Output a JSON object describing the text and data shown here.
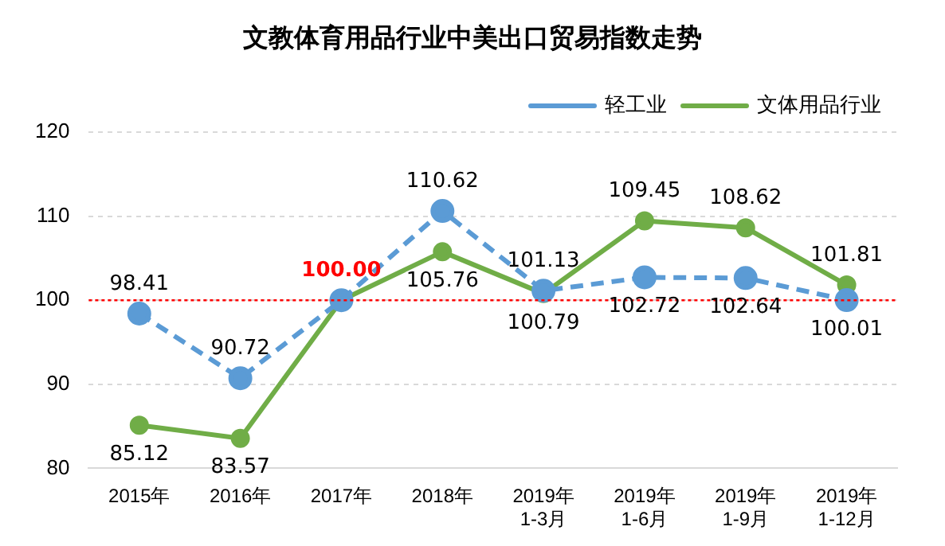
{
  "chart_data": {
    "type": "line",
    "title": "文教体育用品行业中美出口贸易指数走势",
    "categories": [
      "2015年",
      "2016年",
      "2017年",
      "2018年",
      "2019年\n1-3月",
      "2019年\n1-6月",
      "2019年\n1-9月",
      "2019年\n1-12月"
    ],
    "series": [
      {
        "name": "轻工业",
        "color": "#5b9bd5",
        "line_style": "dashed",
        "values": [
          98.41,
          90.72,
          100.0,
          110.62,
          101.13,
          102.72,
          102.64,
          100.01
        ],
        "value_labels": [
          "98.41",
          "90.72",
          "100.00",
          "110.62",
          "101.13",
          "102.72",
          "102.64",
          "100.01"
        ]
      },
      {
        "name": "文体用品行业",
        "color": "#70ad47",
        "line_style": "solid",
        "values": [
          85.12,
          83.57,
          100.0,
          105.76,
          100.79,
          109.45,
          108.62,
          101.81
        ],
        "value_labels": [
          "85.12",
          "83.57",
          null,
          "105.76",
          "100.79",
          "109.45",
          "108.62",
          "101.81"
        ]
      }
    ],
    "ylim": [
      80,
      120
    ],
    "yticks": [
      80,
      90,
      100,
      110,
      120
    ],
    "grid": "y",
    "legend": "top right",
    "marker": "circle",
    "ref_lines": [
      {
        "axis": "y",
        "value": 100,
        "color": "#ff0000",
        "line_style": "dotted"
      }
    ]
  }
}
